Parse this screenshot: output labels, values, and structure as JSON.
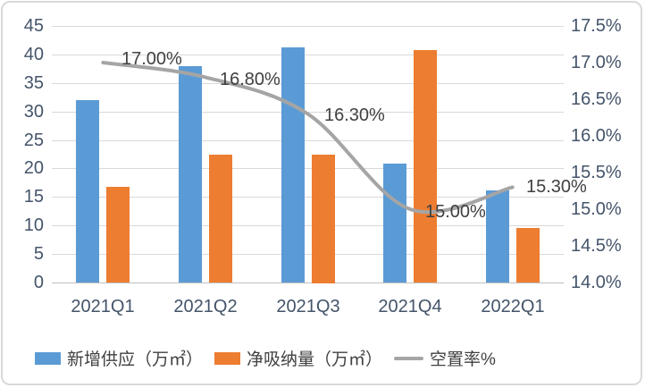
{
  "chart_data": {
    "type": "bar",
    "title": "",
    "categories": [
      "2021Q1",
      "2021Q2",
      "2021Q3",
      "2021Q4",
      "2022Q1"
    ],
    "series": [
      {
        "name": "新增供应（万㎡）",
        "kind": "bar",
        "axis": "left",
        "color": "#5B9BD5",
        "values": [
          32.0,
          37.9,
          41.3,
          20.8,
          16.1
        ]
      },
      {
        "name": "净吸纳量（万㎡）",
        "kind": "bar",
        "axis": "left",
        "color": "#ED7D31",
        "values": [
          16.7,
          22.4,
          22.5,
          40.7,
          9.5
        ]
      },
      {
        "name": "空置率%",
        "kind": "line",
        "axis": "right",
        "color": "#A5A5A5",
        "values": [
          17.0,
          16.8,
          16.3,
          15.0,
          15.3
        ],
        "point_labels": [
          "17.00%",
          "16.80%",
          "16.30%",
          "15.00%",
          "15.30%"
        ]
      }
    ],
    "left_axis": {
      "min": 0,
      "max": 45,
      "step": 5,
      "ticks": [
        "45",
        "40",
        "35",
        "30",
        "25",
        "20",
        "15",
        "10",
        "5",
        "0"
      ]
    },
    "right_axis": {
      "min": 14.0,
      "max": 17.5,
      "step": 0.5,
      "ticks": [
        "17.5%",
        "17.0%",
        "16.5%",
        "16.0%",
        "15.5%",
        "15.0%",
        "14.5%",
        "14.0%"
      ]
    },
    "grid": true,
    "legend_position": "bottom-left"
  },
  "colors": {
    "bar_blue": "#5B9BD5",
    "bar_orange": "#ED7D31",
    "line_gray": "#A5A5A5",
    "gridline": "#D9D9D9",
    "axis_line": "#BFBFBF",
    "tick_text": "#44546A",
    "label_text": "#404040",
    "frame_border": "#D9D9D9"
  }
}
